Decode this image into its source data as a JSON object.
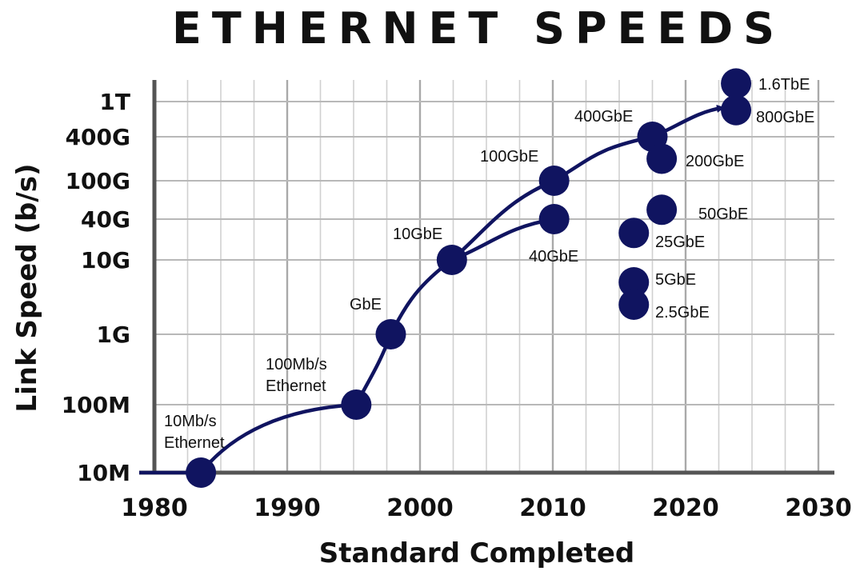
{
  "chart_data": {
    "type": "scatter",
    "title": "ETHERNET SPEEDS",
    "xlabel": "Standard Completed",
    "ylabel": "Link Speed (b/s)",
    "xlim": [
      1980,
      2030
    ],
    "x_ticks": [
      "1980",
      "1990",
      "2000",
      "2010",
      "2020",
      "2030"
    ],
    "y_scale": "log",
    "y_ticks": [
      "10M",
      "100M",
      "1G",
      "10G",
      "40G",
      "100G",
      "400G",
      "1T"
    ],
    "grid": true,
    "marker_color": "#101460",
    "points": [
      {
        "label": "10Mb/s Ethernet",
        "year": 1983.5,
        "speed": "10M"
      },
      {
        "label": "100Mb/s Ethernet",
        "year": 1995.2,
        "speed": "100M"
      },
      {
        "label": "GbE",
        "year": 1997.8,
        "speed": "1G"
      },
      {
        "label": "10GbE",
        "year": 2002.4,
        "speed": "10G"
      },
      {
        "label": "40GbE",
        "year": 2010.1,
        "speed": "40G"
      },
      {
        "label": "100GbE",
        "year": 2010.1,
        "speed": "100G"
      },
      {
        "label": "400GbE",
        "year": 2017.5,
        "speed": "400G"
      },
      {
        "label": "200GbE",
        "year": 2018.2,
        "speed": "200G"
      },
      {
        "label": "50GbE",
        "year": 2018.2,
        "speed": "50G"
      },
      {
        "label": "25GbE",
        "year": 2016.1,
        "speed": "25G"
      },
      {
        "label": "5GbE",
        "year": 2016.1,
        "speed": "5G"
      },
      {
        "label": "2.5GbE",
        "year": 2016.1,
        "speed": "2.5G"
      },
      {
        "label": "800GbE",
        "year": 2023.8,
        "speed": "800G"
      },
      {
        "label": "1.6TbE",
        "year": 2023.8,
        "speed": "1.6T"
      }
    ]
  }
}
